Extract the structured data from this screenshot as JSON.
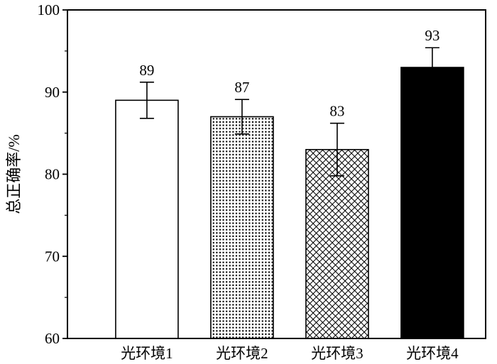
{
  "figure": {
    "background": "#ffffff",
    "ink": "#000000"
  },
  "chart_data": {
    "type": "bar",
    "title": "",
    "categories": [
      "光环境1",
      "光环境2",
      "光环境3",
      "光环境4"
    ],
    "values": [
      89,
      87,
      83,
      93
    ],
    "errors": [
      2.2,
      2.1,
      3.2,
      2.4
    ],
    "data_labels": [
      "89",
      "87",
      "83",
      "93"
    ],
    "xlabel": "",
    "ylabel": "总正确率/%",
    "ylim": [
      60,
      100
    ],
    "yticks": [
      60,
      70,
      80,
      90,
      100
    ],
    "minor_yticks": [
      65,
      75,
      85,
      95
    ],
    "bar_styles": [
      "white",
      "dot-grid",
      "crosshatch",
      "solid-black"
    ],
    "bar_edge_color": "#000000",
    "axis_color": "#000000",
    "grid": false,
    "legend": false,
    "frame": "box",
    "error_bars": true,
    "error_bar_caps": true
  }
}
